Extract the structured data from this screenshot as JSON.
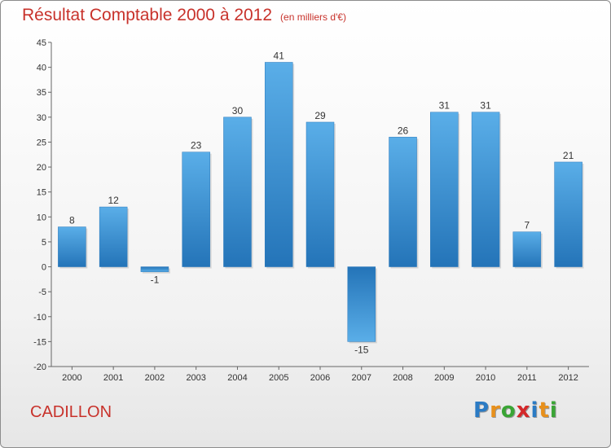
{
  "title": "Résultat Comptable 2000 à 2012",
  "subtitle": "(en milliers d'€)",
  "commune": "CADILLON",
  "logo": {
    "letters": [
      {
        "ch": "P",
        "color": "#2b7bc4"
      },
      {
        "ch": "r",
        "color": "#e8901b"
      },
      {
        "ch": "o",
        "color": "#3aa535"
      },
      {
        "ch": "x",
        "color": "#d4282a"
      },
      {
        "ch": "i",
        "color": "#2b7bc4"
      },
      {
        "ch": "t",
        "color": "#e8901b"
      },
      {
        "ch": "i",
        "color": "#3aa535"
      }
    ]
  },
  "chart_data": {
    "type": "bar",
    "categories": [
      "2000",
      "2001",
      "2002",
      "2003",
      "2004",
      "2005",
      "2006",
      "2007",
      "2008",
      "2009",
      "2010",
      "2011",
      "2012"
    ],
    "values": [
      8,
      12,
      -1,
      23,
      30,
      41,
      29,
      -15,
      26,
      31,
      31,
      7,
      21
    ],
    "data_labels": [
      "8",
      "12",
      "-1",
      "23",
      "30",
      "41",
      "29",
      "-15",
      "26",
      "31",
      "31",
      "7",
      "21"
    ],
    "ylim": [
      -20,
      45
    ],
    "yticks": [
      45,
      40,
      35,
      30,
      25,
      20,
      15,
      10,
      5,
      0,
      -5,
      -10,
      -15,
      -20
    ],
    "ytick_labels": [
      "45",
      "40",
      "35",
      "30",
      "25",
      "20",
      "15",
      "10",
      "5",
      "0",
      "-5",
      "-10",
      "-15",
      "-20"
    ],
    "grid": false,
    "bar_color": "#3f97da",
    "bar_color_dark": "#2474b8"
  }
}
